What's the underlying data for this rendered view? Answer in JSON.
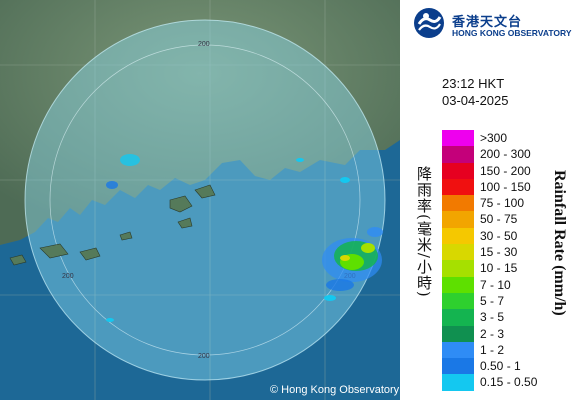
{
  "organization": {
    "name_zh": "香港天文台",
    "name_en": "HONG KONG OBSERVATORY"
  },
  "map": {
    "copyright": "© Hong Kong Observatory",
    "range_ring_labels": [
      "200",
      "200",
      "200",
      "200"
    ]
  },
  "timestamp": {
    "time": "23:12 HKT",
    "date": "03-04-2025"
  },
  "legend": {
    "title_en": "Rainfall Rate (mm/h)",
    "title_zh": "降雨率(毫米/小時)",
    "items": [
      {
        "label": ">300",
        "color": "#ee00ee"
      },
      {
        "label": "200 - 300",
        "color": "#c4007a"
      },
      {
        "label": "150 - 200",
        "color": "#e60020"
      },
      {
        "label": "100 - 150",
        "color": "#f01010"
      },
      {
        "label": "75 - 100",
        "color": "#f27a00"
      },
      {
        "label": "50 - 75",
        "color": "#f2a500"
      },
      {
        "label": "30 - 50",
        "color": "#f5c800"
      },
      {
        "label": "15 - 30",
        "color": "#d8d800"
      },
      {
        "label": "10 - 15",
        "color": "#a6e000"
      },
      {
        "label": "7 - 10",
        "color": "#5ee000"
      },
      {
        "label": "5 - 7",
        "color": "#2ed02e"
      },
      {
        "label": "3 - 5",
        "color": "#14b450"
      },
      {
        "label": "2 - 3",
        "color": "#109050"
      },
      {
        "label": "1 - 2",
        "color": "#2f8cf5"
      },
      {
        "label": "0.50 - 1",
        "color": "#1a78e6"
      },
      {
        "label": "0.15 - 0.50",
        "color": "#14c8f0"
      }
    ]
  },
  "colors": {
    "sea": "#1e6da0",
    "land": "#5f7f63",
    "radar_circle": "#8fe0f5",
    "brand_blue": "#0b3e8c"
  }
}
